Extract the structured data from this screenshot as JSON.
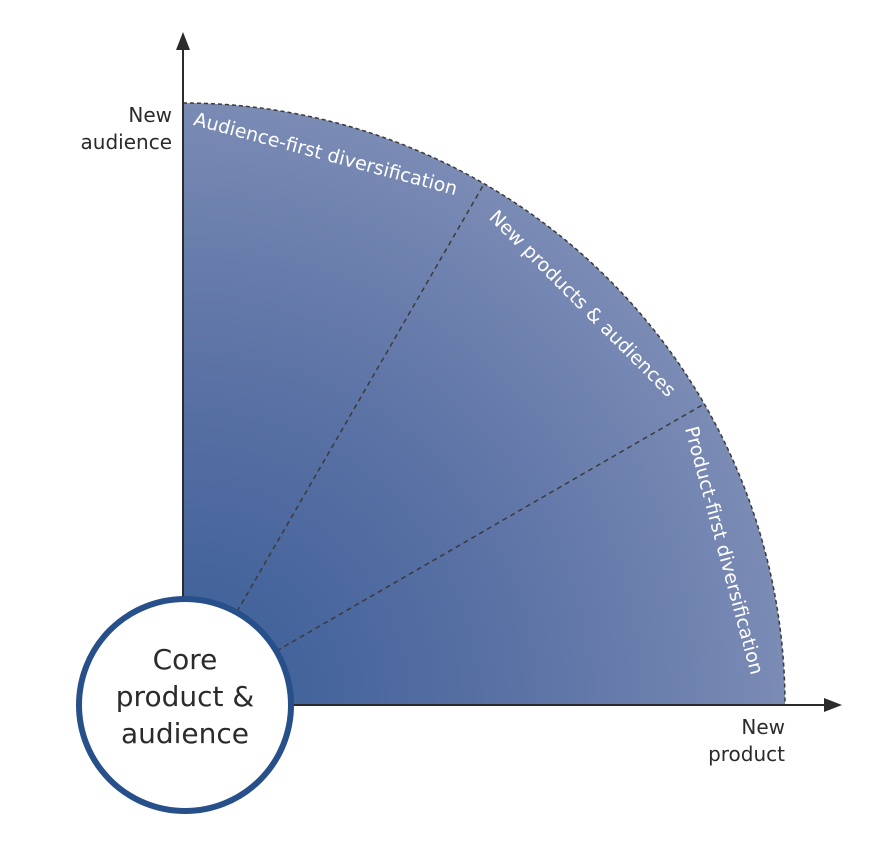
{
  "diagram": {
    "axes": {
      "y_label_line1": "New",
      "y_label_line2": "audience",
      "x_label_line1": "New",
      "x_label_line2": "product"
    },
    "sectors": [
      {
        "label": "Audience-first diversification"
      },
      {
        "label": "New products & audiences"
      },
      {
        "label": "Product-first diversification"
      }
    ],
    "core": {
      "line1": "Core",
      "line2": "product &",
      "line3": "audience"
    },
    "colors": {
      "fill_inner": "#3b5e98",
      "fill_outer": "#7b8cb5",
      "circle_border": "#274f8a",
      "axis": "#2b2b2b",
      "divider": "#3a3a3a"
    }
  }
}
